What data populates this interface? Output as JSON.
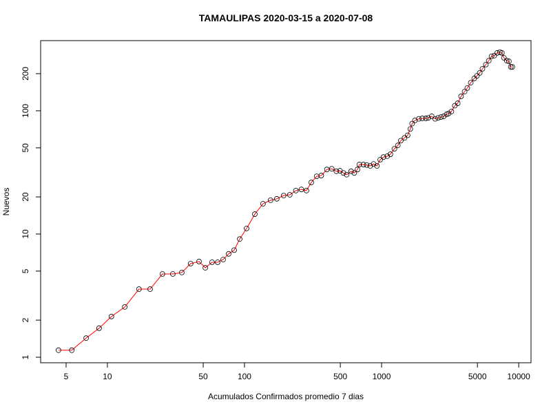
{
  "chart_data": {
    "type": "line",
    "title": "TAMAULIPAS 2020-03-15 a 2020-07-08",
    "x_label": "Acumulados Confirmados promedio  7  dias",
    "y_label": "Nuevos",
    "x": [
      4.4,
      5.5,
      7.0,
      8.7,
      10.7,
      13.4,
      17.0,
      20.5,
      25.2,
      30.0,
      34.9,
      40.5,
      46.6,
      51.8,
      58.0,
      63.7,
      69.9,
      76.6,
      84.1,
      92.3,
      103.6,
      119,
      136.5,
      155,
      172,
      193,
      214,
      237,
      260,
      283,
      307,
      336,
      363,
      399,
      433,
      468,
      497,
      527,
      556,
      600,
      632,
      667,
      688,
      737,
      779,
      826,
      874,
      925,
      977,
      1032,
      1100,
      1160,
      1240,
      1314,
      1380,
      1470,
      1550,
      1620,
      1670,
      1750,
      1870,
      1980,
      2100,
      2190,
      2320,
      2460,
      2580,
      2710,
      2840,
      2980,
      3080,
      3230,
      3420,
      3590,
      3800,
      4030,
      4220,
      4470,
      4740,
      4960,
      5200,
      5440,
      5760,
      6050,
      6340,
      6630,
      6970,
      7290,
      7540,
      7800,
      8180,
      8480,
      8760,
      8980
    ],
    "values": [
      1.14,
      1.14,
      1.43,
      1.72,
      2.14,
      2.56,
      3.57,
      3.57,
      4.74,
      4.74,
      4.87,
      5.75,
      5.98,
      5.32,
      5.9,
      5.9,
      6.2,
      6.9,
      7.4,
      9.1,
      11.1,
      14.5,
      17.6,
      18.8,
      19.3,
      20.5,
      20.8,
      22.5,
      23.0,
      22.5,
      26.2,
      29.4,
      29.8,
      33.4,
      33.8,
      32.3,
      32.6,
      31.3,
      30.3,
      32.3,
      31.3,
      33.4,
      36.6,
      36.6,
      36.3,
      35.7,
      37.0,
      35.7,
      40.1,
      42.1,
      42.8,
      44.4,
      49.1,
      52.4,
      57.2,
      60.3,
      63.3,
      71.2,
      78.6,
      83.5,
      86,
      86.8,
      86.8,
      87.6,
      90.2,
      86,
      87.6,
      88.9,
      90.2,
      93.6,
      95,
      98.6,
      110,
      115,
      131,
      143,
      153,
      169,
      183,
      192,
      203,
      219,
      237,
      255,
      277,
      280,
      295,
      299,
      295,
      269,
      255,
      252,
      227,
      227
    ],
    "color": "#ff0000",
    "marker_color": "#000000",
    "xlog": true,
    "ylog": true,
    "xlim": [
      3.26,
      12300
    ],
    "ylim": [
      0.902,
      371
    ],
    "xticks": [
      5,
      10,
      50,
      100,
      500,
      1000,
      5000,
      10000
    ],
    "yticks": [
      1,
      2,
      5,
      10,
      20,
      50,
      100,
      200
    ]
  }
}
